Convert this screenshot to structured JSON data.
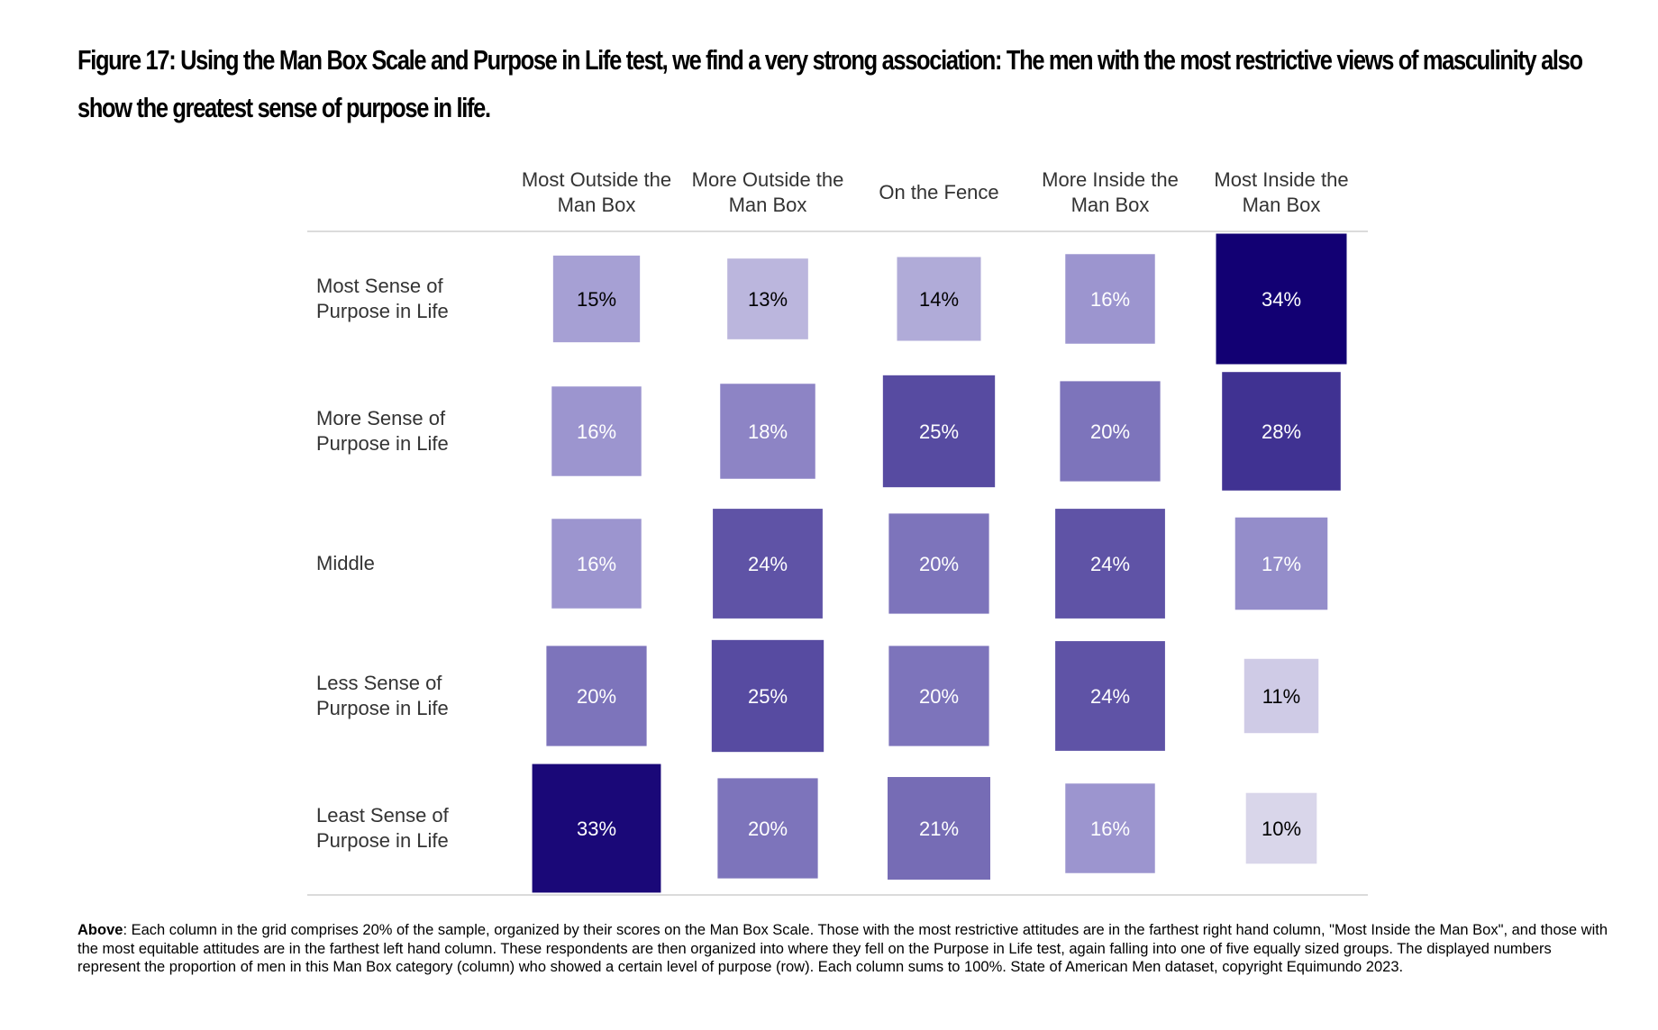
{
  "title": "Figure 17: Using the Man Box Scale and Purpose in Life test, we find a very strong association: The men with the most restrictive views of masculinity also show the greatest sense of purpose in life.",
  "chart_data": {
    "type": "heatmap",
    "title": "Figure 17: Using the Man Box Scale and Purpose in Life test, we find a very strong association: The men with the most restrictive views of masculinity also show the greatest sense of purpose in life.",
    "columns": [
      [
        "Most Outside the",
        "Man Box"
      ],
      [
        "More Outside the",
        "Man Box"
      ],
      [
        "On the Fence"
      ],
      [
        "More Inside the",
        "Man Box"
      ],
      [
        "Most Inside the",
        "Man Box"
      ]
    ],
    "rows": [
      [
        "Most Sense of",
        "Purpose in Life"
      ],
      [
        "More Sense of",
        "Purpose in Life"
      ],
      [
        "Middle"
      ],
      [
        "Less Sense of",
        "Purpose in Life"
      ],
      [
        "Least Sense of",
        "Purpose in Life"
      ]
    ],
    "values": [
      [
        15,
        13,
        14,
        16,
        34
      ],
      [
        16,
        18,
        25,
        20,
        28
      ],
      [
        16,
        24,
        20,
        24,
        17
      ],
      [
        20,
        25,
        20,
        24,
        11
      ],
      [
        33,
        20,
        21,
        16,
        10
      ]
    ],
    "unit": "%",
    "value_range": [
      10,
      34
    ],
    "note": "Each column sums to 100%."
  },
  "footnote": {
    "lead": "Above",
    "text": ": Each column in the grid comprises 20% of the sample, organized by their scores on the Man Box Scale. Those with the most restrictive attitudes are in the farthest right hand column, \"Most Inside the Man Box\", and those with the most equitable attitudes are in the farthest left hand column. These respondents are then organized into where they fell on the Purpose in Life test, again falling into one of five equally sized groups. The displayed numbers represent the proportion of men in this Man Box category (column) who showed a certain level of purpose (row). Each column sums to 100%. State of American Men dataset, copyright Equimundo 2023."
  },
  "colors": {
    "low": "#d9d6ea",
    "mid": "#9c95cf",
    "high": "#120073",
    "light_text": "#000000",
    "dark_text": "#ffffff",
    "rule": "#cfcfcf"
  }
}
